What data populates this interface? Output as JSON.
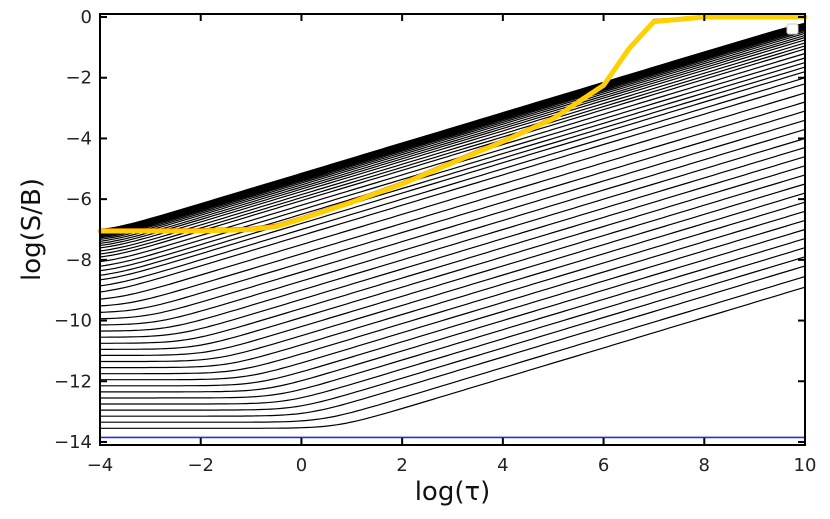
{
  "chart_data": {
    "type": "line",
    "title": "",
    "xlabel": "log(τ)",
    "ylabel": "log(S/B)",
    "xlim": [
      -4,
      10
    ],
    "ylim": [
      -14.1,
      0.1
    ],
    "x_ticks": [
      -4,
      -2,
      0,
      2,
      4,
      6,
      8,
      10
    ],
    "y_ticks": [
      0,
      -2,
      -4,
      -6,
      -8,
      -10,
      -12,
      -14
    ],
    "x_tick_labels": [
      "−4",
      "−2",
      "0",
      "2",
      "4",
      "6",
      "8",
      "10"
    ],
    "y_tick_labels": [
      "0",
      "−2",
      "−4",
      "−6",
      "−8",
      "−10",
      "−12",
      "−14"
    ],
    "grid": false,
    "legend": "top-right (empty)",
    "colors": {
      "family": "#000000",
      "upper_red": "#cc0000",
      "upper_gold": "#ffd000",
      "baseline": "#2233dd",
      "axes": "#000000"
    },
    "series": [
      {
        "color": "#000000",
        "style": "family of 50 curves: flat plateau from log(τ)=-4 up to a knee, then linear rise with slope 0.5, then saturation at 0",
        "plateau_values": [
          -13.55,
          -13.35,
          -13.15,
          -12.95,
          -12.75,
          -12.55,
          -12.35,
          -12.15,
          -11.95,
          -11.75,
          -11.55,
          -11.35,
          -11.15,
          -10.95,
          -10.75,
          -10.55,
          -10.35,
          -10.15,
          -9.95,
          -9.75,
          -9.55,
          -9.35,
          -9.15,
          -8.95,
          -8.75,
          -8.6,
          -8.45,
          -8.3,
          -8.15,
          -8.0,
          -7.9,
          -7.8,
          -7.7,
          -7.62,
          -7.55,
          -7.48,
          -7.42,
          -7.37,
          -7.33,
          -7.3,
          -7.27,
          -7.25,
          -7.23,
          -7.21,
          -7.19,
          -7.17,
          -7.15,
          -7.13,
          -7.11,
          -7.1
        ],
        "x_knee": [
          0.7,
          0.4,
          0.1,
          -0.1,
          -0.3,
          -0.5,
          -0.7,
          -0.9,
          -1.1,
          -1.3,
          -1.5,
          -1.7,
          -1.9,
          -2.1,
          -2.3,
          -2.5,
          -2.7,
          -2.9,
          -3.1,
          -3.3,
          -3.5,
          -3.7,
          -3.9,
          -3.9,
          -3.9,
          -3.9,
          -3.9,
          -3.9,
          -3.9,
          -3.9,
          -3.9,
          -3.9,
          -3.9,
          -3.9,
          -3.9,
          -3.9,
          -3.9,
          -3.9,
          -3.9,
          -3.9,
          -3.9,
          -3.9,
          -3.9,
          -3.9,
          -3.9,
          -3.9,
          -3.9,
          -3.9,
          -3.9,
          -3.9
        ]
      },
      {
        "color": "#cc0000",
        "x": [
          -4,
          -2,
          -1,
          -0.5,
          0,
          1,
          2,
          3,
          4,
          5,
          6,
          6.5,
          7,
          8,
          10
        ],
        "y": [
          -7.0,
          -7.0,
          -6.95,
          -6.85,
          -6.6,
          -6.05,
          -5.45,
          -4.75,
          -4.05,
          -3.3,
          -2.2,
          -1.0,
          -0.1,
          0,
          0
        ]
      },
      {
        "color": "#ffd000",
        "x": [
          -4,
          -2,
          -1,
          -0.5,
          0,
          1,
          2,
          3,
          4,
          5,
          6,
          6.5,
          7,
          8,
          10
        ],
        "y": [
          -7.05,
          -7.05,
          -7.0,
          -6.9,
          -6.65,
          -6.1,
          -5.5,
          -4.8,
          -4.1,
          -3.35,
          -2.25,
          -1.05,
          -0.15,
          0,
          0
        ]
      },
      {
        "color": "#2233dd",
        "x": [
          -4,
          10
        ],
        "y": [
          -13.85,
          -13.85
        ]
      }
    ]
  }
}
